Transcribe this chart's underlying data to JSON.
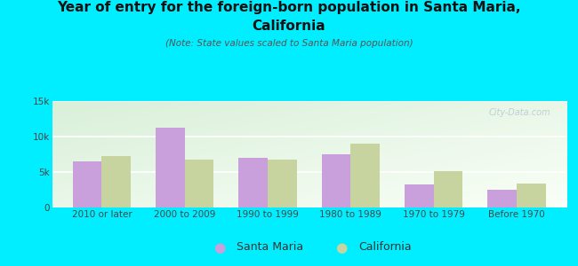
{
  "categories": [
    "2010 or later",
    "2000 to 2009",
    "1990 to 1999",
    "1980 to 1989",
    "1970 to 1979",
    "Before 1970"
  ],
  "santa_maria": [
    6500,
    11200,
    7000,
    7500,
    3300,
    2500
  ],
  "california": [
    7200,
    6800,
    6800,
    9000,
    5100,
    3400
  ],
  "santa_maria_color": "#c9a0dc",
  "california_color": "#c8d4a0",
  "title_line1": "Year of entry for the foreign-born population in Santa Maria,",
  "title_line2": "California",
  "note": "(Note: State values scaled to Santa Maria population)",
  "legend_santa_maria": "Santa Maria",
  "legend_california": "California",
  "ylim": [
    0,
    15000
  ],
  "yticks": [
    0,
    5000,
    10000,
    15000
  ],
  "ytick_labels": [
    "0",
    "5k",
    "10k",
    "15k"
  ],
  "bg_outer": "#00eeff",
  "bg_plot_topleft": "#d8edd8",
  "bg_plot_bottomright": "#f5faee",
  "watermark": "City-Data.com",
  "bar_width": 0.35,
  "title_fontsize": 11,
  "note_fontsize": 7.5,
  "tick_fontsize": 7.5,
  "legend_fontsize": 9
}
